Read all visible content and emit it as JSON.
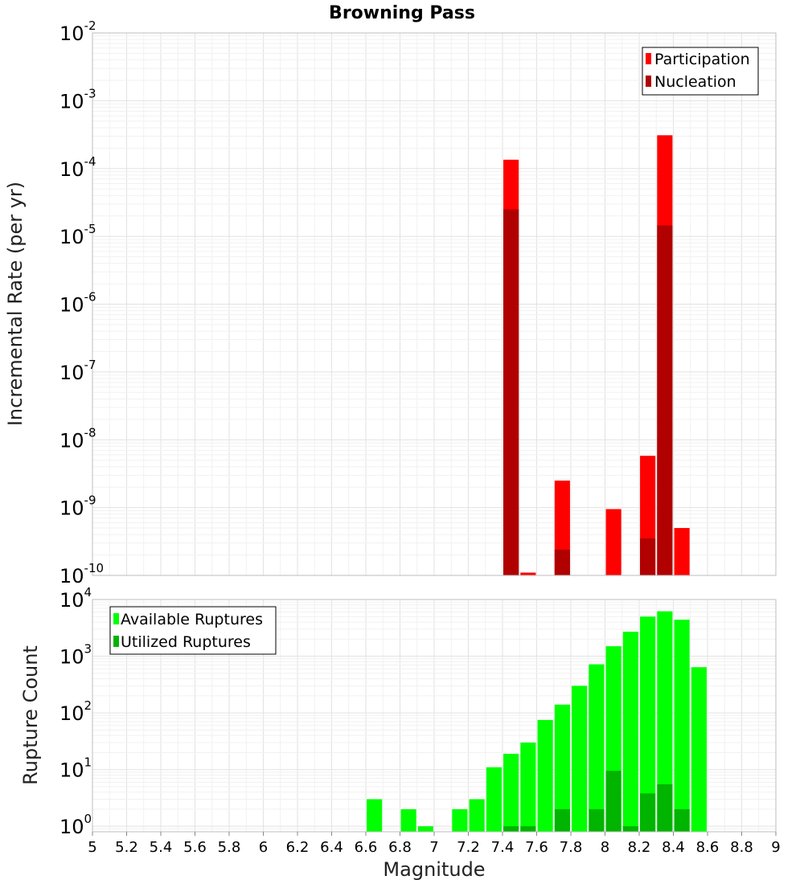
{
  "chart_data": [
    {
      "type": "bar",
      "title": "Browning Pass",
      "ylabel": "Incremental Rate (per yr)",
      "xlabel": "",
      "xlim": [
        5,
        9
      ],
      "ylim": [
        1e-10,
        0.01
      ],
      "yscale": "log",
      "y_tick_exponents": [
        -10,
        -9,
        -8,
        -7,
        -6,
        -5,
        -4,
        -3,
        -2
      ],
      "bar_width": 0.09,
      "grid": true,
      "legend_position": "top-right",
      "series": [
        {
          "name": "Participation",
          "color": "#ff0000",
          "x": [
            7.45,
            7.55,
            7.75,
            8.05,
            8.25,
            8.35,
            8.45
          ],
          "values": [
            0.000135,
            1.1e-10,
            2.5e-09,
            9.5e-10,
            5.8e-09,
            0.00031,
            5e-10
          ]
        },
        {
          "name": "Nucleation",
          "color": "#b00000",
          "x": [
            7.45,
            7.75,
            8.25,
            8.35
          ],
          "values": [
            2.5e-05,
            2.4e-10,
            3.5e-10,
            1.45e-05
          ]
        }
      ]
    },
    {
      "type": "bar",
      "title": "",
      "ylabel": "Rupture Count",
      "xlabel": "Magnitude",
      "xlim": [
        5,
        9
      ],
      "ylim": [
        0.8,
        10000
      ],
      "yscale": "log",
      "y_tick_exponents": [
        0,
        1,
        2,
        3,
        4
      ],
      "x_ticks": [
        "5",
        "5.2",
        "5.4",
        "5.6",
        "5.8",
        "6",
        "6.2",
        "6.4",
        "6.6",
        "6.8",
        "7",
        "7.2",
        "7.4",
        "7.6",
        "7.8",
        "8",
        "8.2",
        "8.4",
        "8.6",
        "8.8",
        "9"
      ],
      "bar_width": 0.09,
      "grid": true,
      "legend_position": "top-left",
      "series": [
        {
          "name": "Available Ruptures",
          "color": "#00ff00",
          "x": [
            6.65,
            6.85,
            6.95,
            7.15,
            7.25,
            7.35,
            7.45,
            7.55,
            7.65,
            7.75,
            7.85,
            7.95,
            8.05,
            8.15,
            8.25,
            8.35,
            8.45,
            8.55
          ],
          "values": [
            3,
            2,
            1,
            2,
            3,
            11,
            19,
            30,
            75,
            140,
            300,
            720,
            1500,
            2700,
            5000,
            6200,
            4400,
            640
          ]
        },
        {
          "name": "Utilized Ruptures",
          "color": "#00b400",
          "x": [
            7.45,
            7.55,
            7.75,
            7.95,
            8.05,
            8.15,
            8.25,
            8.35,
            8.45
          ],
          "values": [
            1,
            1,
            2,
            2,
            9.5,
            1,
            3.8,
            5.5,
            2
          ]
        }
      ]
    }
  ]
}
